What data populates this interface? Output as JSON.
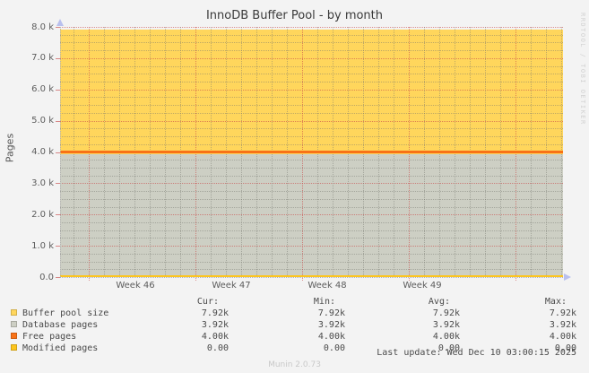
{
  "title": "InnoDB Buffer Pool - by month",
  "watermark": "RRDTOOL / TOBI OETIKER",
  "y_axis": {
    "label": "Pages",
    "ticks": [
      "8.0 k",
      "7.0 k",
      "6.0 k",
      "5.0 k",
      "4.0 k",
      "3.0 k",
      "2.0 k",
      "1.0 k",
      "0.0"
    ]
  },
  "x_axis": {
    "ticks": [
      "Week 46",
      "Week 47",
      "Week 48",
      "Week 49"
    ]
  },
  "legend": {
    "columns": [
      "Cur:",
      "Min:",
      "Avg:",
      "Max:"
    ],
    "rows": [
      {
        "label": "Buffer pool size",
        "color": "#ffd65c",
        "cur": "7.92k",
        "min": "7.92k",
        "avg": "7.92k",
        "max": "7.92k"
      },
      {
        "label": "Database pages",
        "color": "#cdcfc4",
        "cur": "3.92k",
        "min": "3.92k",
        "avg": "3.92k",
        "max": "3.92k"
      },
      {
        "label": "Free pages",
        "color": "#f87217",
        "cur": "4.00k",
        "min": "4.00k",
        "avg": "4.00k",
        "max": "4.00k"
      },
      {
        "label": "Modified pages",
        "color": "#fdc51d",
        "cur": "0.00",
        "min": "0.00",
        "avg": "0.00",
        "max": "0.00"
      }
    ]
  },
  "footer": {
    "last_update": "Last update: Wed Dec 10 03:00:15 2025",
    "munin_version": "Munin 2.0.73"
  },
  "chart_data": {
    "type": "area",
    "title": "InnoDB Buffer Pool - by month",
    "xlabel": "",
    "ylabel": "Pages",
    "ylim": [
      0,
      8000
    ],
    "x_tick_labels": [
      "Week 46",
      "Week 47",
      "Week 48",
      "Week 49"
    ],
    "grid": true,
    "legend_position": "bottom",
    "series": [
      {
        "name": "Buffer pool size",
        "draw": "area",
        "color": "#ffd65c",
        "values": [
          7920,
          7920,
          7920,
          7920
        ]
      },
      {
        "name": "Database pages",
        "draw": "area",
        "color": "#cdcfc4",
        "values": [
          3920,
          3920,
          3920,
          3920
        ]
      },
      {
        "name": "Free pages",
        "draw": "line",
        "color": "#f87217",
        "values": [
          4000,
          4000,
          4000,
          4000
        ]
      },
      {
        "name": "Modified pages",
        "draw": "line",
        "color": "#fdc51d",
        "values": [
          0,
          0,
          0,
          0
        ]
      }
    ]
  }
}
